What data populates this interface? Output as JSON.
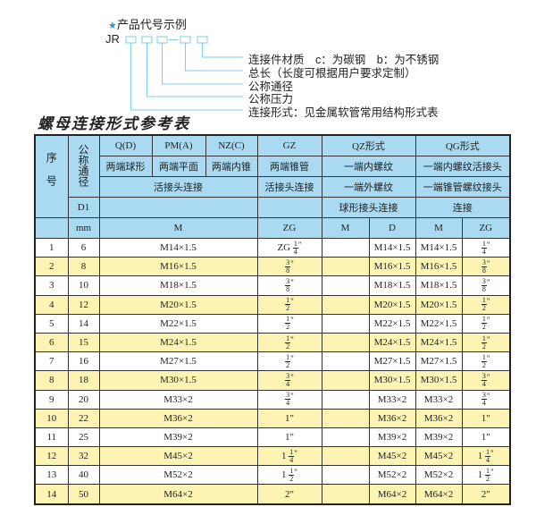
{
  "example": {
    "title": "产品代号示例",
    "prefix": "JR",
    "labels": [
      "连接件材质　c：为碳钢　b：为不锈钢",
      "总长（长度可根据用户要求定制）",
      "公称通径",
      "公称压力",
      "连接形式：见金属软管常用结构形式表"
    ],
    "accent_color": "#1a9ad6"
  },
  "table": {
    "title": "螺母连接形式参考表",
    "header": {
      "seq": "序号",
      "dn": "公称通径",
      "d1": "D1",
      "mm": "mm",
      "types": [
        "Q(D)",
        "PM(A)",
        "NZ(C)",
        "GZ",
        "QZ形式",
        "QG形式"
      ],
      "shapes": [
        "两端球形",
        "两端平面",
        "两端内锥",
        "两端锥管",
        "一端内螺纹",
        "一端内螺纹活接头"
      ],
      "conn": [
        "活接头连接",
        "活接头连接",
        "一端外螺纹",
        "一端锥管螺纹接头"
      ],
      "conn2": [
        "球形接头连接",
        "连接"
      ],
      "units": [
        "M",
        "ZG",
        "M",
        "D",
        "M",
        "ZG"
      ]
    },
    "rows": [
      {
        "n": "1",
        "dn": "6",
        "m": "M14×1.5",
        "zg_prefix": "ZG",
        "zg_whole": "",
        "zg_num": "1",
        "zg_den": "4",
        "zg_text": "",
        "qz_d": "M14×1.5",
        "qg_m": "M14×1.5",
        "qg_whole": "",
        "qg_num": "1",
        "qg_den": "4",
        "qg_text": ""
      },
      {
        "n": "2",
        "dn": "8",
        "m": "M16×1.5",
        "zg_prefix": "",
        "zg_whole": "",
        "zg_num": "3",
        "zg_den": "8",
        "zg_text": "",
        "qz_d": "M16×1.5",
        "qg_m": "M16×1.5",
        "qg_whole": "",
        "qg_num": "3",
        "qg_den": "8",
        "qg_text": ""
      },
      {
        "n": "3",
        "dn": "10",
        "m": "M18×1.5",
        "zg_prefix": "",
        "zg_whole": "",
        "zg_num": "3",
        "zg_den": "8",
        "zg_text": "",
        "qz_d": "M18×1.5",
        "qg_m": "M18×1.5",
        "qg_whole": "",
        "qg_num": "3",
        "qg_den": "8",
        "qg_text": ""
      },
      {
        "n": "4",
        "dn": "12",
        "m": "M20×1.5",
        "zg_prefix": "",
        "zg_whole": "",
        "zg_num": "1",
        "zg_den": "2",
        "zg_text": "",
        "qz_d": "M20×1.5",
        "qg_m": "M20×1.5",
        "qg_whole": "",
        "qg_num": "1",
        "qg_den": "2",
        "qg_text": ""
      },
      {
        "n": "5",
        "dn": "14",
        "m": "M22×1.5",
        "zg_prefix": "",
        "zg_whole": "",
        "zg_num": "1",
        "zg_den": "2",
        "zg_text": "",
        "qz_d": "M22×1.5",
        "qg_m": "M22×1.5",
        "qg_whole": "",
        "qg_num": "1",
        "qg_den": "2",
        "qg_text": ""
      },
      {
        "n": "6",
        "dn": "15",
        "m": "M24×1.5",
        "zg_prefix": "",
        "zg_whole": "",
        "zg_num": "1",
        "zg_den": "2",
        "zg_text": "",
        "qz_d": "M24×1.5",
        "qg_m": "M24×1.5",
        "qg_whole": "",
        "qg_num": "1",
        "qg_den": "2",
        "qg_text": ""
      },
      {
        "n": "7",
        "dn": "16",
        "m": "M27×1.5",
        "zg_prefix": "",
        "zg_whole": "",
        "zg_num": "1",
        "zg_den": "2",
        "zg_text": "",
        "qz_d": "M27×1.5",
        "qg_m": "M27×1.5",
        "qg_whole": "",
        "qg_num": "1",
        "qg_den": "2",
        "qg_text": ""
      },
      {
        "n": "8",
        "dn": "18",
        "m": "M30×1.5",
        "zg_prefix": "",
        "zg_whole": "",
        "zg_num": "3",
        "zg_den": "4",
        "zg_text": "",
        "qz_d": "M30×1.5",
        "qg_m": "M30×1.5",
        "qg_whole": "",
        "qg_num": "3",
        "qg_den": "4",
        "qg_text": ""
      },
      {
        "n": "9",
        "dn": "20",
        "m": "M33×2",
        "zg_prefix": "",
        "zg_whole": "",
        "zg_num": "3",
        "zg_den": "4",
        "zg_text": "",
        "qz_d": "M33×2",
        "qg_m": "M33×2",
        "qg_whole": "",
        "qg_num": "3",
        "qg_den": "4",
        "qg_text": ""
      },
      {
        "n": "10",
        "dn": "22",
        "m": "M36×2",
        "zg_prefix": "",
        "zg_whole": "",
        "zg_num": "",
        "zg_den": "",
        "zg_text": "1\"",
        "qz_d": "M36×2",
        "qg_m": "M36×2",
        "qg_whole": "",
        "qg_num": "",
        "qg_den": "",
        "qg_text": "1\""
      },
      {
        "n": "11",
        "dn": "25",
        "m": "M39×2",
        "zg_prefix": "",
        "zg_whole": "",
        "zg_num": "",
        "zg_den": "",
        "zg_text": "1\"",
        "qz_d": "M39×2",
        "qg_m": "M39×2",
        "qg_whole": "",
        "qg_num": "",
        "qg_den": "",
        "qg_text": "1\""
      },
      {
        "n": "12",
        "dn": "32",
        "m": "M45×2",
        "zg_prefix": "",
        "zg_whole": "1",
        "zg_num": "1",
        "zg_den": "4",
        "zg_text": "",
        "qz_d": "M45×2",
        "qg_m": "M45×2",
        "qg_whole": "1",
        "qg_num": "1",
        "qg_den": "4",
        "qg_text": ""
      },
      {
        "n": "13",
        "dn": "40",
        "m": "M52×2",
        "zg_prefix": "",
        "zg_whole": "1",
        "zg_num": "1",
        "zg_den": "2",
        "zg_text": "",
        "qz_d": "M52×2",
        "qg_m": "M52×2",
        "qg_whole": "1",
        "qg_num": "1",
        "qg_den": "2",
        "qg_text": ""
      },
      {
        "n": "14",
        "dn": "50",
        "m": "M64×2",
        "zg_prefix": "",
        "zg_whole": "",
        "zg_num": "",
        "zg_den": "",
        "zg_text": "2\"",
        "qz_d": "M64×2",
        "qg_m": "M64×2",
        "qg_whole": "",
        "qg_num": "",
        "qg_den": "",
        "qg_text": "2\""
      }
    ],
    "colors": {
      "header_bg": "#a9daf2",
      "alt_row_bg": "#fdf4b4"
    }
  }
}
